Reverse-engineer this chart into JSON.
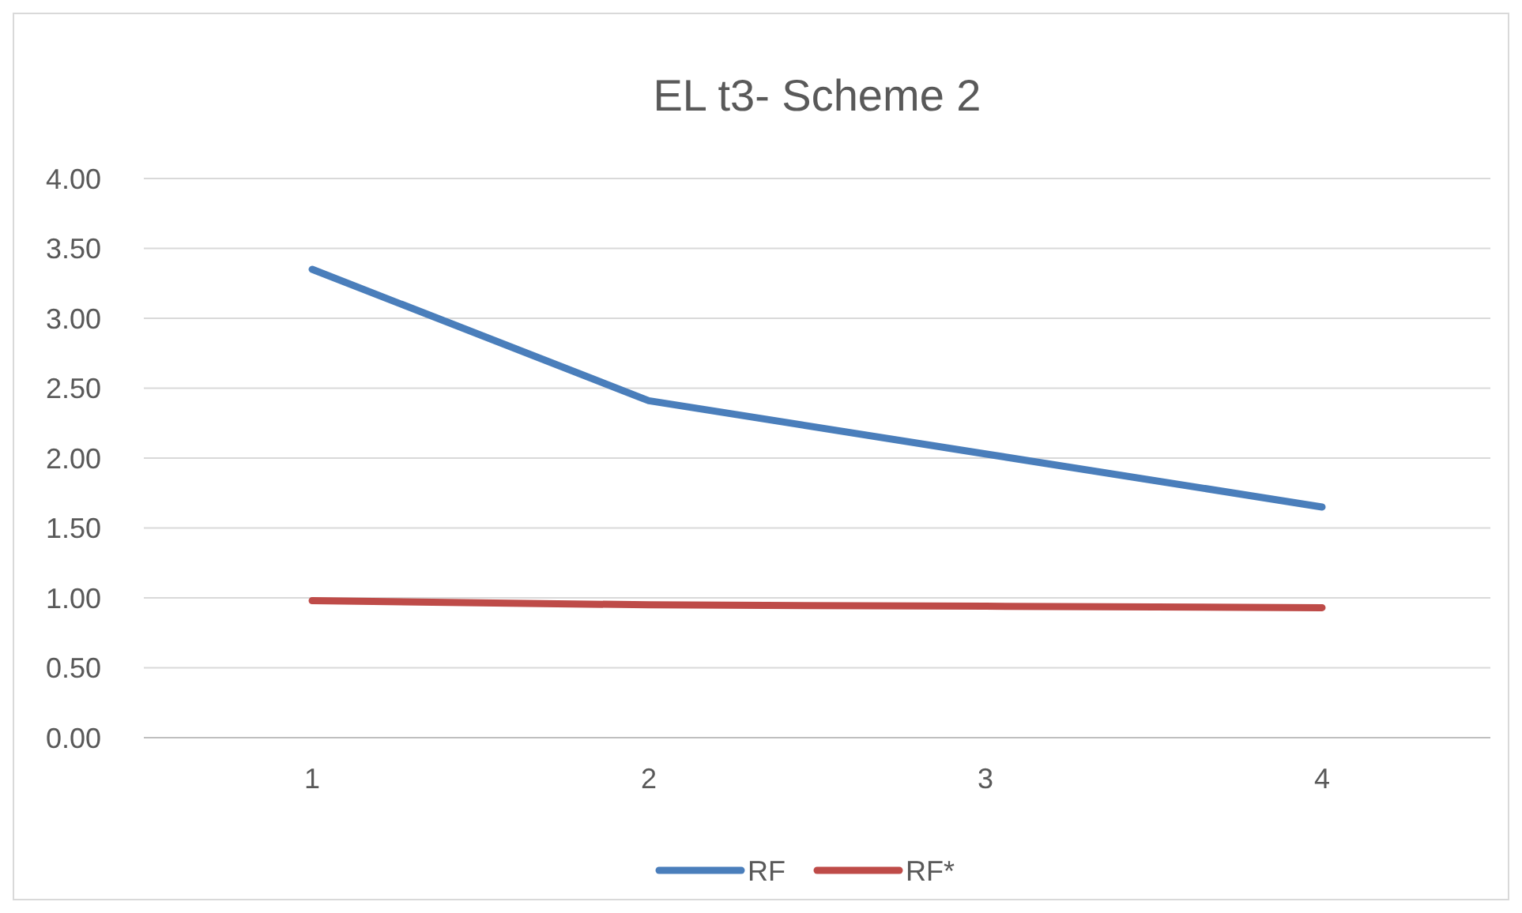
{
  "chart_data": {
    "type": "line",
    "title": "EL t3- Scheme 2",
    "categories": [
      "1",
      "2",
      "3",
      "4"
    ],
    "series": [
      {
        "name": "RF",
        "color": "#4a7ebb",
        "values": [
          3.35,
          2.41,
          2.03,
          1.65
        ]
      },
      {
        "name": "RF*",
        "color": "#be4b48",
        "values": [
          0.98,
          0.95,
          0.94,
          0.93
        ]
      }
    ],
    "ylim": [
      0,
      4
    ],
    "yticks": [
      {
        "value": 0,
        "label": "0.00"
      },
      {
        "value": 0.5,
        "label": "0.50"
      },
      {
        "value": 1,
        "label": "1.00"
      },
      {
        "value": 1.5,
        "label": "1.50"
      },
      {
        "value": 2,
        "label": "2.00"
      },
      {
        "value": 2.5,
        "label": "2.50"
      },
      {
        "value": 3,
        "label": "3.00"
      },
      {
        "value": 3.5,
        "label": "3.50"
      },
      {
        "value": 4,
        "label": "4.00"
      }
    ],
    "grid": "y",
    "legend": "bottom"
  }
}
